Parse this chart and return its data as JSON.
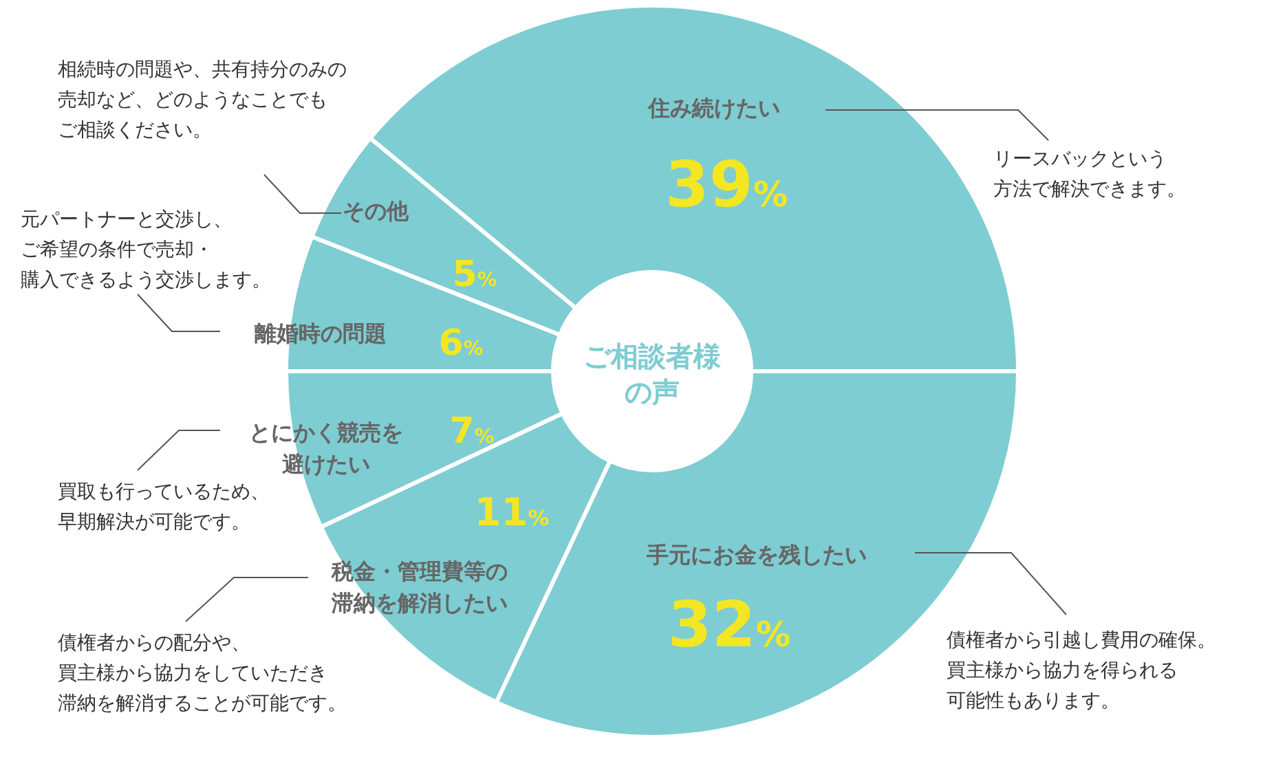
{
  "chart_data": {
    "type": "donut",
    "title": "ご相談者様の声",
    "categories": [
      "住み続けたい",
      "手元にお金を残したい",
      "税金・管理費等の滞納を解消したい",
      "とにかく競売を避けたい",
      "離婚時の問題",
      "その他"
    ],
    "values": [
      39,
      32,
      11,
      7,
      6,
      5
    ],
    "value_labels": [
      "39%",
      "32%",
      "11%",
      "7%",
      "6%",
      "5%"
    ],
    "colors": [
      "#7ecdd2",
      "#7ecdd2",
      "#7ecdd2",
      "#7ecdd2",
      "#7ecdd2",
      "#7ecdd2"
    ],
    "annotations": [
      "リースバックという方法で解決できます。",
      "債権者から引越し費用の確保。買主様から協力を得られる可能性もあります。",
      "債権者からの配分や、買主様から協力をしていただき滞納を解消することが可能です。",
      "買取も行っているため、早期解決が可能です。",
      "元パートナーと交渉し、ご希望の条件で売却・購入できるよう交渉します。",
      "相続時の問題や、共有持分のみの売却など、どのようなことでもご相談ください。"
    ],
    "legend": false
  }
}
